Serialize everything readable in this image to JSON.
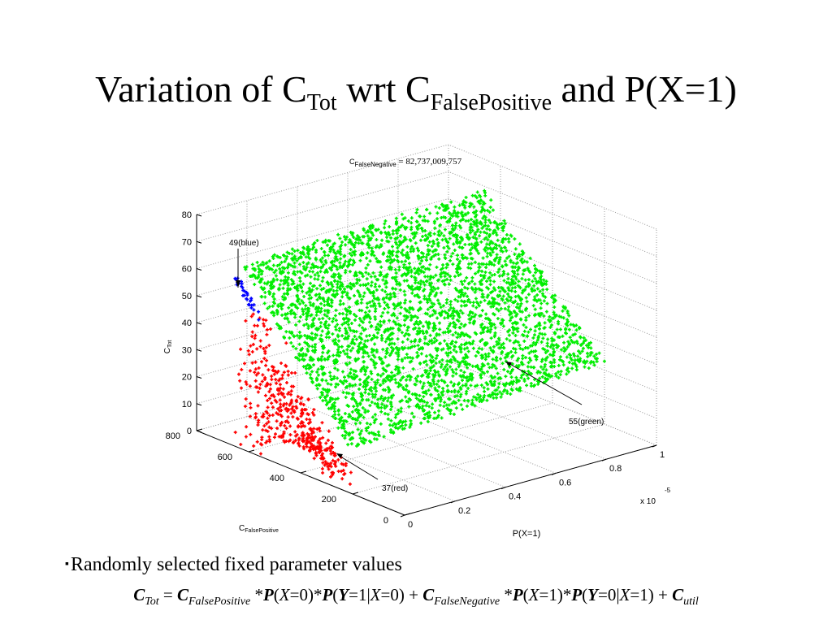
{
  "slide": {
    "title": {
      "part1": "Variation of C",
      "sub1": "Tot",
      "part2": " wrt C",
      "sub2": "FalsePositive",
      "part3": " and P(X=1)"
    },
    "bullet_mark": "▪",
    "bullet_text": "Randomly selected fixed parameter values",
    "formula": {
      "c1": "C",
      "c1_sub": "Tot",
      "eq": " = ",
      "c2": "C",
      "c2_sub": "FalsePositive",
      "t1": " *",
      "p1": "P",
      "a1": "(",
      "x1": "X",
      "a1b": "=0)*",
      "p2": "P",
      "a2": "(",
      "y2": "Y",
      "a2b": "=1|",
      "x2": "X",
      "a2c": "=0) + ",
      "c3": "C",
      "c3_sub": "FalseNegative",
      "t3": " *",
      "p3": "P",
      "a3": "(",
      "x3": "X",
      "a3b": "=1)*",
      "p4": "P",
      "a4": "(",
      "y4": "Y",
      "a4b": "=0|",
      "x4": "X",
      "a4c": "=1) + ",
      "c5": "C",
      "c5_sub": "util"
    }
  },
  "chart_data": {
    "type": "scatter",
    "projection": "3d",
    "title_prefix": "C",
    "title_sub": "FalseNegative",
    "title_value": " = 82,737,009,757",
    "x_axis": {
      "label": "P(X=1)",
      "ticks": [
        "0",
        "0.2",
        "0.4",
        "0.6",
        "0.8",
        "1"
      ],
      "multiplier": "x 10",
      "multiplier_exp": "-5",
      "range": [
        0,
        1
      ]
    },
    "y_axis": {
      "label_prefix": "C",
      "label_sub": "FalsePositive",
      "ticks": [
        "0",
        "200",
        "400",
        "600",
        "800"
      ],
      "range": [
        0,
        800
      ]
    },
    "z_axis": {
      "label_prefix": "C",
      "label_sub": "Tot",
      "ticks": [
        "0",
        "10",
        "20",
        "30",
        "40",
        "50",
        "60",
        "70",
        "80"
      ],
      "range": [
        0,
        80
      ]
    },
    "grid": true,
    "series": [
      {
        "color": "#00ee00",
        "marker": "+",
        "description_count": 55
      },
      {
        "color": "#ff0000",
        "marker": "+",
        "description_count": 37
      },
      {
        "color": "#0000ff",
        "marker": "+",
        "description_count": 49
      }
    ],
    "annotations": [
      {
        "text": "49(blue)"
      },
      {
        "text": "55(green)"
      },
      {
        "text": "37(red)"
      }
    ]
  }
}
